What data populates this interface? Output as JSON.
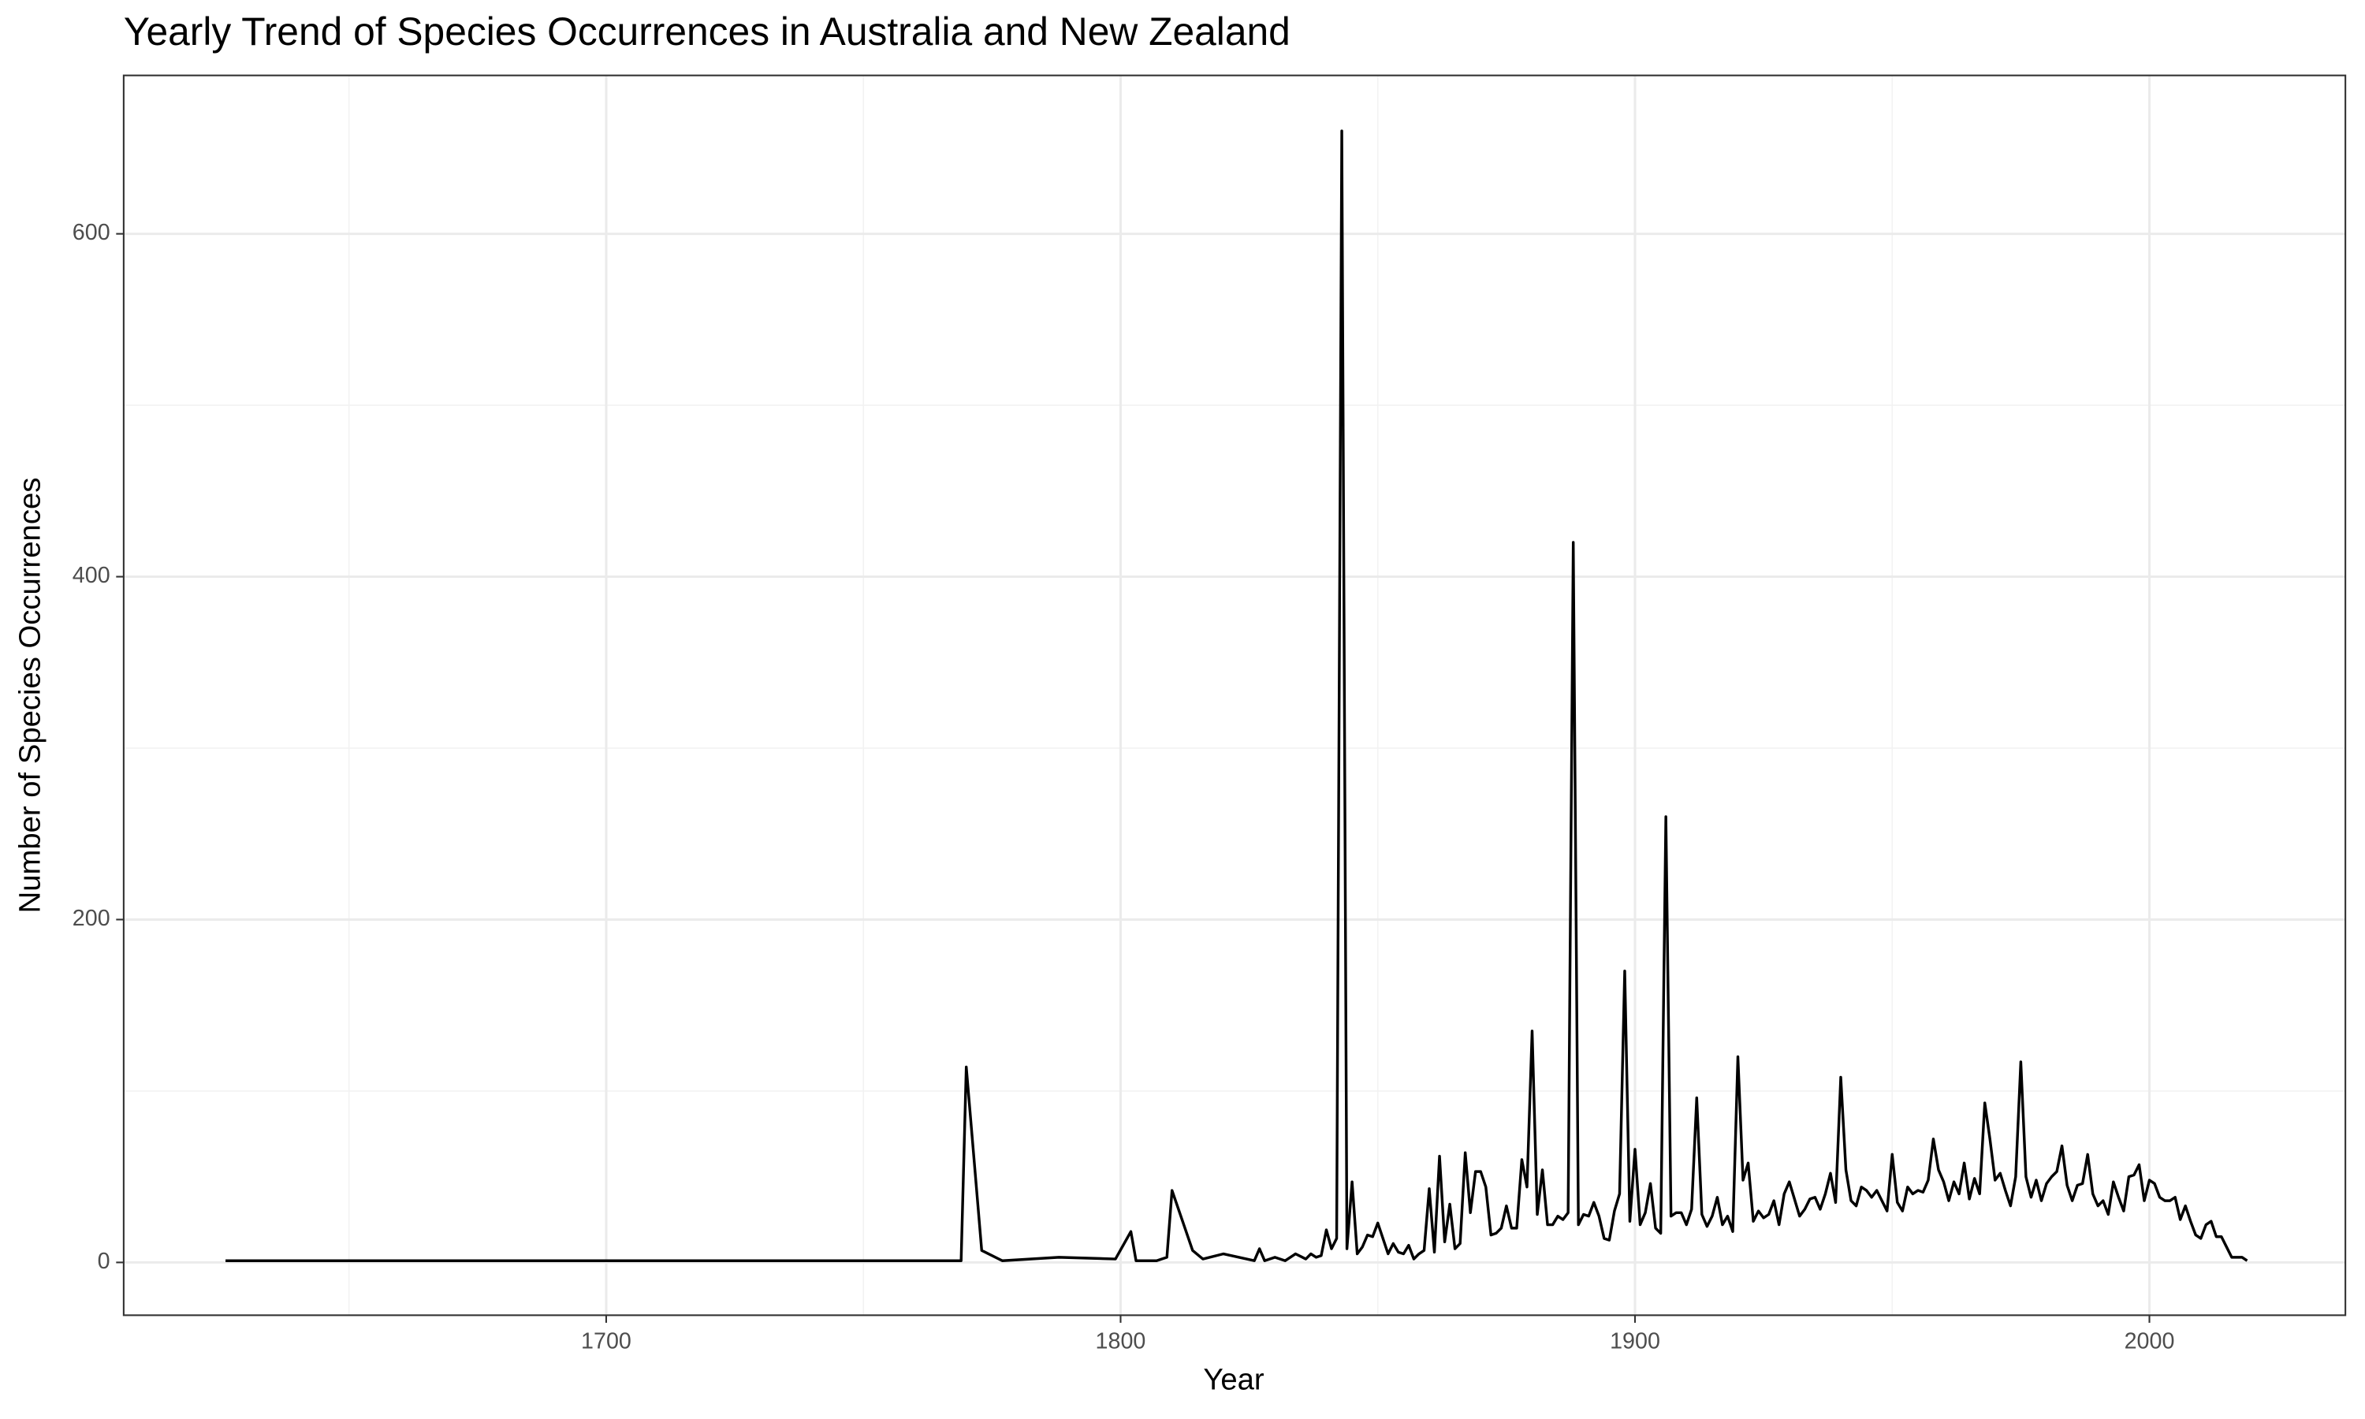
{
  "chart_data": {
    "type": "line",
    "title": "Yearly Trend of Species Occurrences in Australia and New Zealand",
    "x_label": "Year",
    "y_label": "Number of Species Occurrences",
    "color": "#000000",
    "grid": true,
    "xlim": [
      1606.2,
      2038.1
    ],
    "ylim": [
      -30.8,
      692.4
    ],
    "xticks": [
      1700,
      1800,
      1900,
      2000
    ],
    "yticks": [
      0,
      200,
      400,
      600
    ],
    "x": [
      1626,
      1769,
      1770,
      1773,
      1777,
      1788,
      1799,
      1802,
      1803,
      1807,
      1809,
      1810,
      1814,
      1816,
      1820,
      1826,
      1827,
      1828,
      1830,
      1832,
      1834,
      1836,
      1837,
      1838,
      1839,
      1840,
      1841,
      1842,
      1843,
      1844,
      1845,
      1846,
      1847,
      1848,
      1849,
      1850,
      1851,
      1852,
      1853,
      1854,
      1855,
      1856,
      1857,
      1858,
      1859,
      1860,
      1861,
      1862,
      1863,
      1864,
      1865,
      1866,
      1867,
      1868,
      1869,
      1870,
      1871,
      1872,
      1873,
      1874,
      1875,
      1876,
      1877,
      1878,
      1879,
      1880,
      1881,
      1882,
      1883,
      1884,
      1885,
      1886,
      1887,
      1888,
      1889,
      1890,
      1891,
      1892,
      1893,
      1894,
      1895,
      1896,
      1897,
      1898,
      1899,
      1900,
      1901,
      1902,
      1903,
      1904,
      1905,
      1906,
      1907,
      1908,
      1909,
      1910,
      1911,
      1912,
      1913,
      1914,
      1915,
      1916,
      1917,
      1918,
      1919,
      1920,
      1921,
      1922,
      1923,
      1924,
      1925,
      1926,
      1927,
      1928,
      1929,
      1930,
      1931,
      1932,
      1933,
      1934,
      1935,
      1936,
      1937,
      1938,
      1939,
      1940,
      1941,
      1942,
      1943,
      1944,
      1945,
      1946,
      1947,
      1948,
      1949,
      1950,
      1951,
      1952,
      1953,
      1954,
      1955,
      1956,
      1957,
      1958,
      1959,
      1960,
      1961,
      1962,
      1963,
      1964,
      1965,
      1966,
      1967,
      1968,
      1969,
      1970,
      1971,
      1972,
      1973,
      1974,
      1975,
      1976,
      1977,
      1978,
      1979,
      1980,
      1981,
      1982,
      1983,
      1984,
      1985,
      1986,
      1987,
      1988,
      1989,
      1990,
      1991,
      1992,
      1993,
      1994,
      1995,
      1996,
      1997,
      1998,
      1999,
      2000,
      2001,
      2002,
      2003,
      2004,
      2005,
      2006,
      2007,
      2008,
      2009,
      2010,
      2011,
      2012,
      2013,
      2014,
      2015,
      2016,
      2017,
      2018,
      2019
    ],
    "values": [
      1,
      1,
      114,
      7,
      1,
      3,
      2,
      18,
      1,
      1,
      3,
      42,
      7,
      2,
      5,
      1,
      8,
      1,
      3,
      1,
      5,
      2,
      5,
      3,
      4,
      19,
      8,
      14,
      660,
      8,
      47,
      5,
      9,
      16,
      15,
      23,
      14,
      5,
      11,
      6,
      5,
      10,
      2,
      5,
      7,
      43,
      6,
      62,
      12,
      34,
      8,
      11,
      64,
      29,
      53,
      53,
      44,
      16,
      17,
      20,
      33,
      20,
      20,
      60,
      44,
      135,
      28,
      54,
      22,
      22,
      27,
      25,
      29,
      420,
      22,
      28,
      27,
      35,
      27,
      14,
      13,
      30,
      40,
      170,
      24,
      66,
      22,
      29,
      46,
      20,
      17,
      260,
      27,
      29,
      29,
      22,
      31,
      96,
      28,
      21,
      27,
      38,
      22,
      27,
      18,
      120,
      48,
      58,
      24,
      30,
      26,
      28,
      36,
      22,
      40,
      47,
      37,
      27,
      31,
      37,
      38,
      31,
      40,
      52,
      35,
      108,
      54,
      36,
      33,
      44,
      42,
      38,
      42,
      36,
      30,
      63,
      35,
      30,
      44,
      40,
      42,
      41,
      48,
      72,
      54,
      47,
      36,
      47,
      40,
      58,
      37,
      49,
      40,
      93,
      72,
      48,
      52,
      42,
      33,
      50,
      117,
      50,
      38,
      48,
      36,
      46,
      50,
      53,
      68,
      45,
      36,
      45,
      46,
      63,
      40,
      33,
      36,
      28,
      47,
      38,
      30,
      50,
      51,
      57,
      36,
      48,
      46,
      38,
      36,
      36,
      38,
      25,
      33,
      24,
      16,
      14,
      22,
      24,
      15,
      15,
      9,
      3,
      3,
      3,
      1
    ]
  }
}
